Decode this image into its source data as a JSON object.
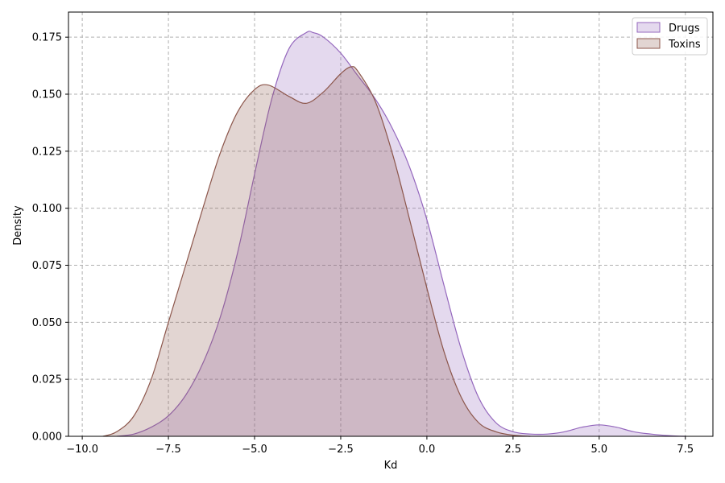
{
  "chart_data": {
    "type": "area",
    "title": "",
    "xlabel": "Kd",
    "ylabel": "Density",
    "xlim": [
      -10.4,
      8.3
    ],
    "ylim": [
      0,
      0.186
    ],
    "x_ticks": [
      -10.0,
      -7.5,
      -5.0,
      -2.5,
      0.0,
      2.5,
      5.0,
      7.5
    ],
    "x_tick_labels": [
      "−10.0",
      "−7.5",
      "−5.0",
      "−2.5",
      "0.0",
      "2.5",
      "5.0",
      "7.5"
    ],
    "y_ticks": [
      0.0,
      0.025,
      0.05,
      0.075,
      0.1,
      0.125,
      0.15,
      0.175
    ],
    "y_tick_labels": [
      "0.000",
      "0.025",
      "0.050",
      "0.075",
      "0.100",
      "0.125",
      "0.150",
      "0.175"
    ],
    "grid": true,
    "legend_position": "top-right",
    "series": [
      {
        "name": "Drugs",
        "color": "#9467bd",
        "x": [
          -9.0,
          -8.5,
          -8.0,
          -7.5,
          -7.0,
          -6.5,
          -6.0,
          -5.5,
          -5.0,
          -4.5,
          -4.0,
          -3.5,
          -3.3,
          -3.0,
          -2.5,
          -2.0,
          -1.5,
          -1.0,
          -0.5,
          0.0,
          0.5,
          1.0,
          1.5,
          2.0,
          2.5,
          3.0,
          3.5,
          4.0,
          4.5,
          5.0,
          5.5,
          6.0,
          6.5,
          7.0,
          7.5
        ],
        "values": [
          0.0,
          0.001,
          0.004,
          0.009,
          0.018,
          0.032,
          0.052,
          0.08,
          0.115,
          0.148,
          0.17,
          0.177,
          0.177,
          0.175,
          0.168,
          0.158,
          0.148,
          0.135,
          0.118,
          0.095,
          0.066,
          0.038,
          0.017,
          0.006,
          0.002,
          0.001,
          0.001,
          0.002,
          0.004,
          0.005,
          0.004,
          0.002,
          0.001,
          0.0003,
          0.0
        ]
      },
      {
        "name": "Toxins",
        "color": "#8c564b",
        "x": [
          -9.4,
          -9.0,
          -8.5,
          -8.0,
          -7.5,
          -7.0,
          -6.5,
          -6.0,
          -5.5,
          -5.0,
          -4.6,
          -4.0,
          -3.5,
          -3.0,
          -2.5,
          -2.2,
          -2.0,
          -1.5,
          -1.0,
          -0.5,
          0.0,
          0.5,
          1.0,
          1.5,
          2.0,
          2.5,
          3.0
        ],
        "values": [
          0.0,
          0.002,
          0.009,
          0.025,
          0.05,
          0.075,
          0.1,
          0.124,
          0.142,
          0.152,
          0.154,
          0.149,
          0.146,
          0.151,
          0.159,
          0.162,
          0.16,
          0.147,
          0.124,
          0.095,
          0.065,
          0.037,
          0.017,
          0.006,
          0.002,
          0.0005,
          0.0
        ]
      }
    ]
  }
}
